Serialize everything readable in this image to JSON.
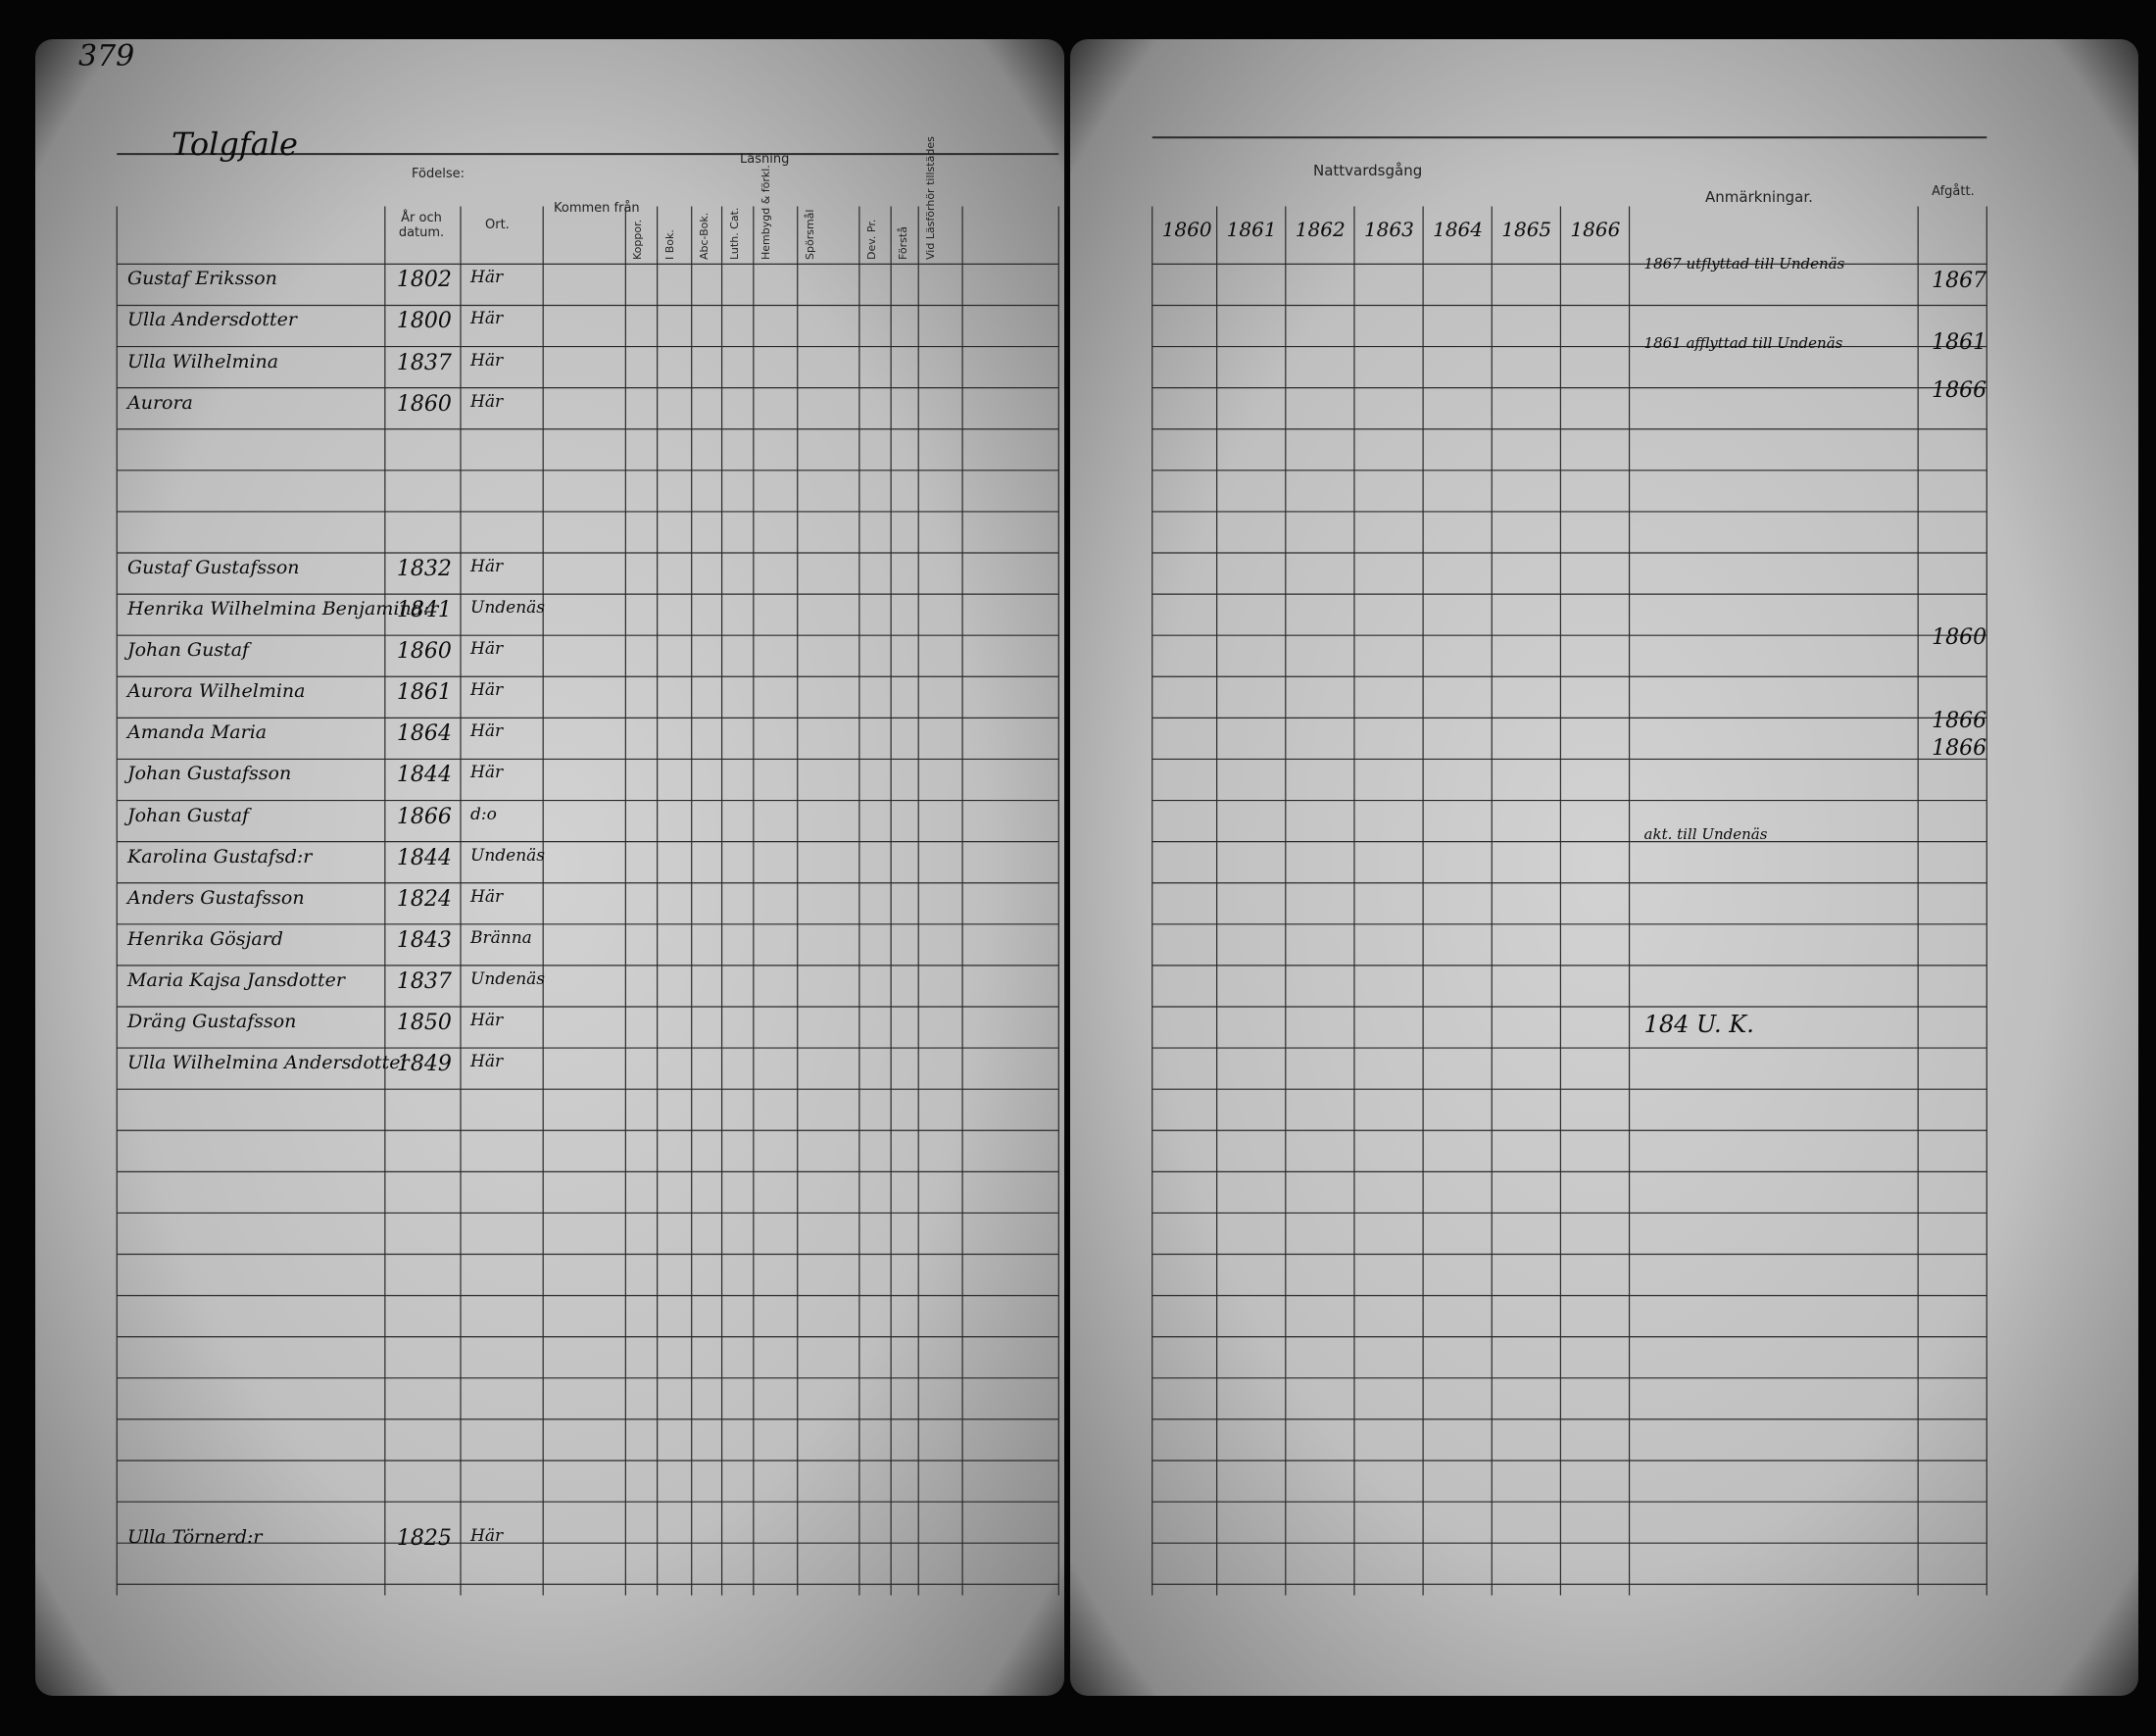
{
  "left_page": {
    "page_number": "379",
    "place": "Tolgfale",
    "headers": {
      "birth": "Födelse:",
      "birth_date": "År och datum.",
      "birth_place": "Ort.",
      "came_from": "Kommen från",
      "smallpox": "Koppor.",
      "reading": "Läsning",
      "in_book": "I Bok.",
      "abc": "Abc-Bok.",
      "catechism": "Luth. Cat.",
      "explanation": "Hembygd & förkl.",
      "knowledge": "Spörsmål",
      "dev": "Dev. Pr.",
      "conf": "Förstå",
      "communion": "Vid Läsförhör tillstädes"
    },
    "rows": [
      {
        "name": "Gustaf Eriksson",
        "born": "1802",
        "place": "Här"
      },
      {
        "name": "Ulla Andersdotter",
        "born": "1800",
        "place": "Här"
      },
      {
        "name": "Ulla Wilhelmina",
        "born": "1837",
        "place": "Här"
      },
      {
        "name": "Aurora",
        "born": "1860",
        "place": "Här"
      },
      {
        "name": "Gustaf Gustafsson",
        "born": "1832",
        "place": "Här"
      },
      {
        "name": "Henrika Wilhelmina Benjamind:r",
        "born": "1841",
        "place": "Undenäs"
      },
      {
        "name": "Johan Gustaf",
        "born": "1860",
        "place": "Här"
      },
      {
        "name": "Aurora Wilhelmina",
        "born": "1861",
        "place": "Här"
      },
      {
        "name": "Amanda Maria",
        "born": "1864",
        "place": "Här"
      },
      {
        "name": "Johan Gustafsson",
        "born": "1844",
        "place": "Här"
      },
      {
        "name": "Johan Gustaf",
        "born": "1866",
        "place": "d:o"
      },
      {
        "name": "Karolina Gustafsd:r",
        "born": "1844",
        "place": "Undenäs"
      },
      {
        "name": "Anders Gustafsson",
        "born": "1824",
        "place": "Här"
      },
      {
        "name": "Henrika Gösjard",
        "born": "1843",
        "place": "Bränna"
      },
      {
        "name": "Maria Kajsa Jansdotter",
        "born": "1837",
        "place": "Undenäs"
      },
      {
        "name": "Dräng Gustafsson",
        "born": "1850",
        "place": "Här"
      },
      {
        "name": "Ulla Wilhelmina Andersdotter",
        "born": "1849",
        "place": "Här"
      }
    ],
    "footer_row": {
      "name": "Ulla Törnerd:r",
      "born": "1825",
      "place": "Här"
    }
  },
  "right_page": {
    "communion": "Nattvardsgång",
    "years": [
      "1860",
      "1861",
      "1862",
      "1863",
      "1864",
      "1865",
      "1866"
    ],
    "remarks": "Anmärkningar.",
    "departed": "Afgått.",
    "notes": [
      "1867 utflyttad till Undenäs",
      "1861 afflyttad till Undenäs",
      "akt. till Undenäs",
      "184 U. K."
    ],
    "departed_values": [
      "1867",
      "1861",
      "1866",
      "1860",
      "1866",
      "1866"
    ]
  }
}
